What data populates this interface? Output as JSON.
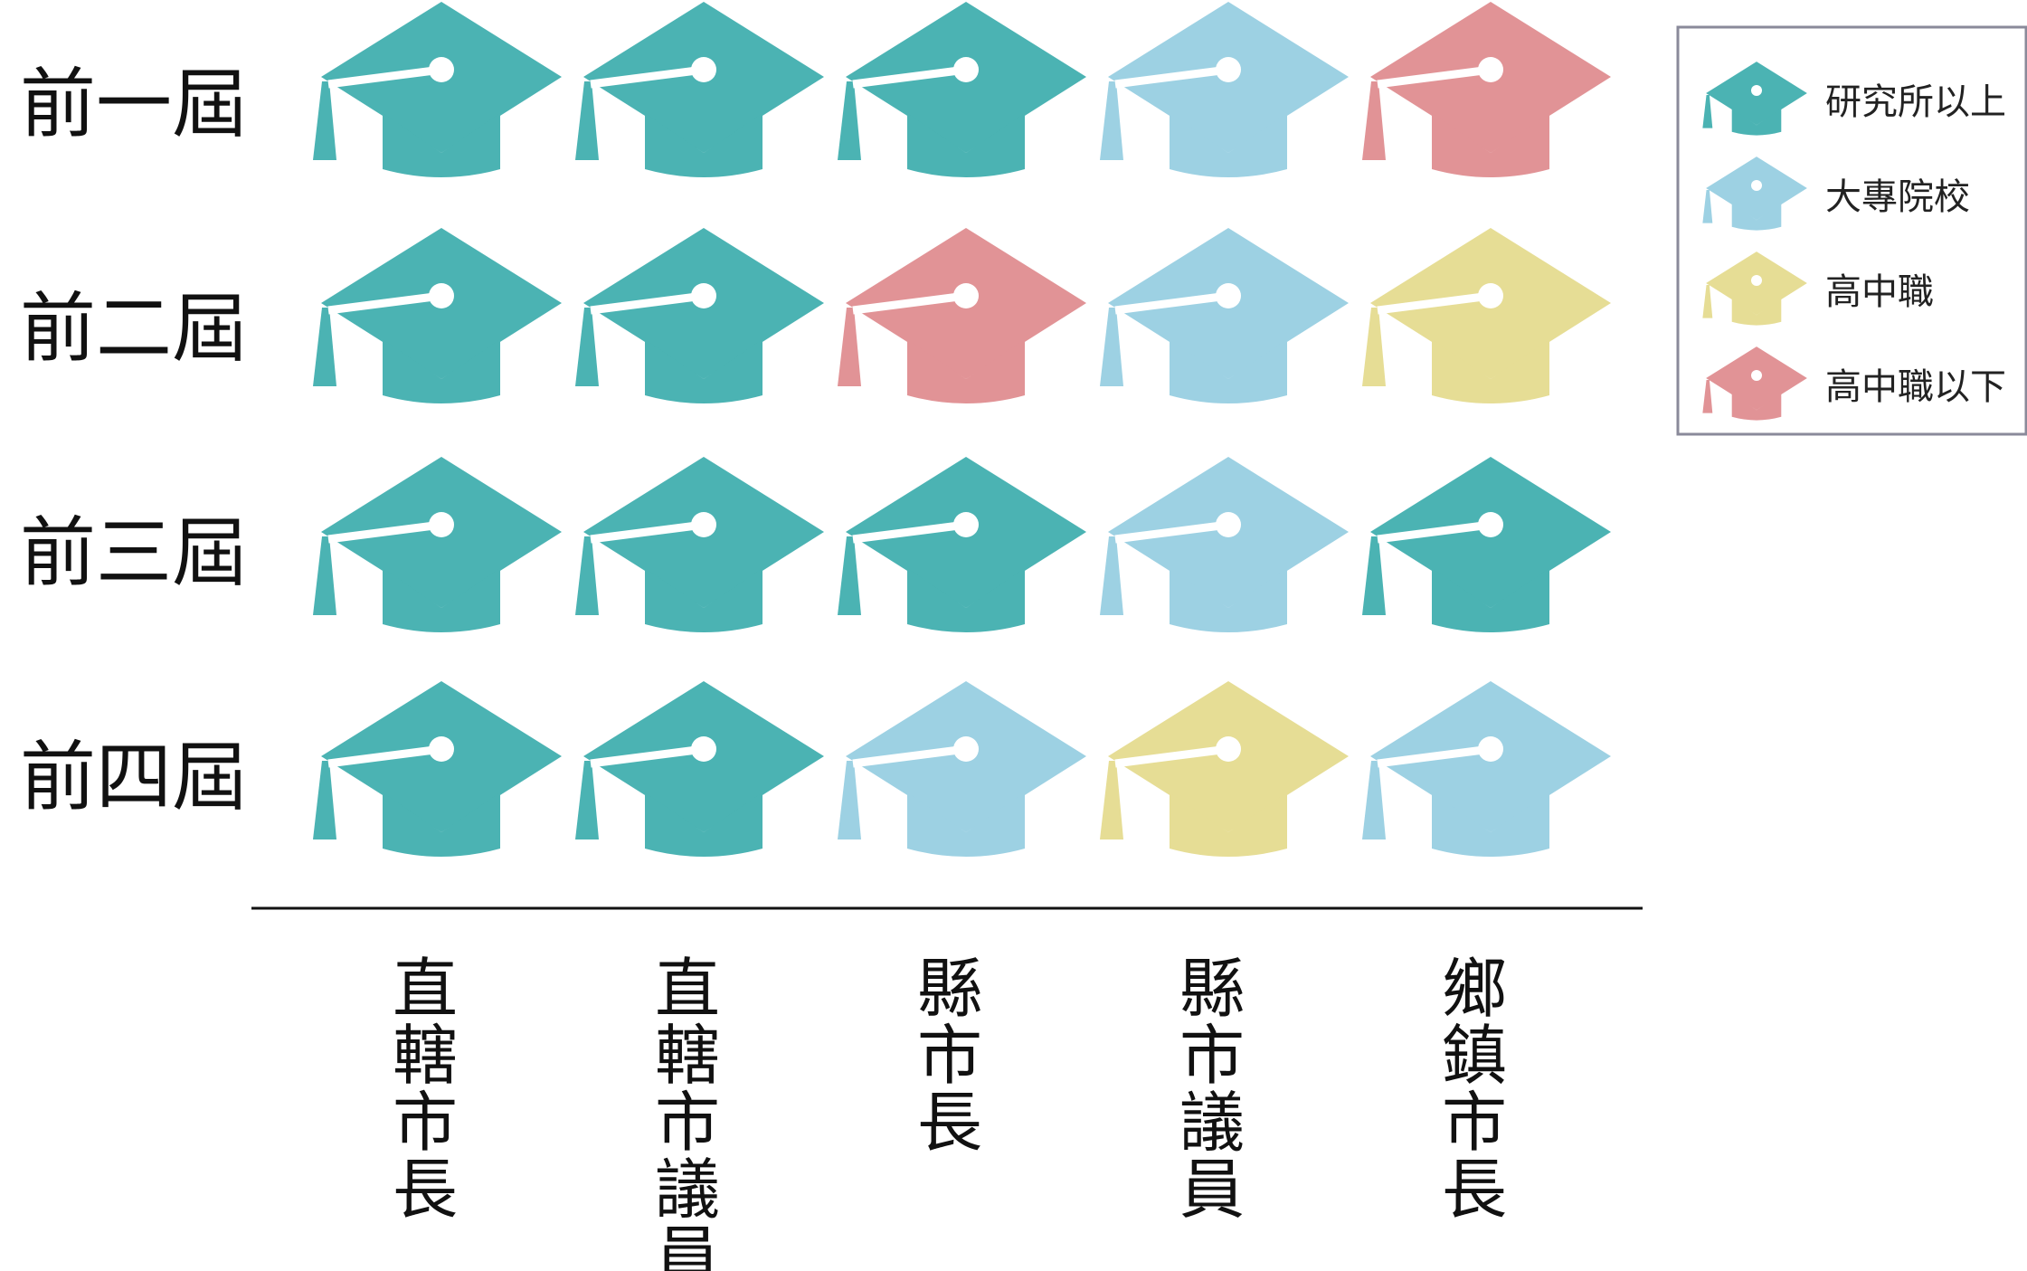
{
  "chart_data": {
    "type": "icon-matrix",
    "rows": [
      "前一屆",
      "前二屆",
      "前三屆",
      "前四屆"
    ],
    "columns": [
      "直轄市長",
      "直轄市議員",
      "縣市長",
      "縣市議員",
      "鄉鎮市長"
    ],
    "categories": [
      "研究所以上",
      "大專院校",
      "高中職",
      "高中職以下"
    ],
    "colors": {
      "研究所以上": "#4bb3b3",
      "大專院校": "#9dd1e3",
      "高中職": "#e6dd95",
      "高中職以下": "#e19396"
    },
    "values": [
      [
        "研究所以上",
        "研究所以上",
        "研究所以上",
        "大專院校",
        "高中職以下"
      ],
      [
        "研究所以上",
        "研究所以上",
        "高中職以下",
        "大專院校",
        "高中職"
      ],
      [
        "研究所以上",
        "研究所以上",
        "研究所以上",
        "大專院校",
        "研究所以上"
      ],
      [
        "研究所以上",
        "研究所以上",
        "大專院校",
        "高中職",
        "大專院校"
      ]
    ],
    "icon": "graduation-cap-icon",
    "legend_position": "top-right"
  }
}
